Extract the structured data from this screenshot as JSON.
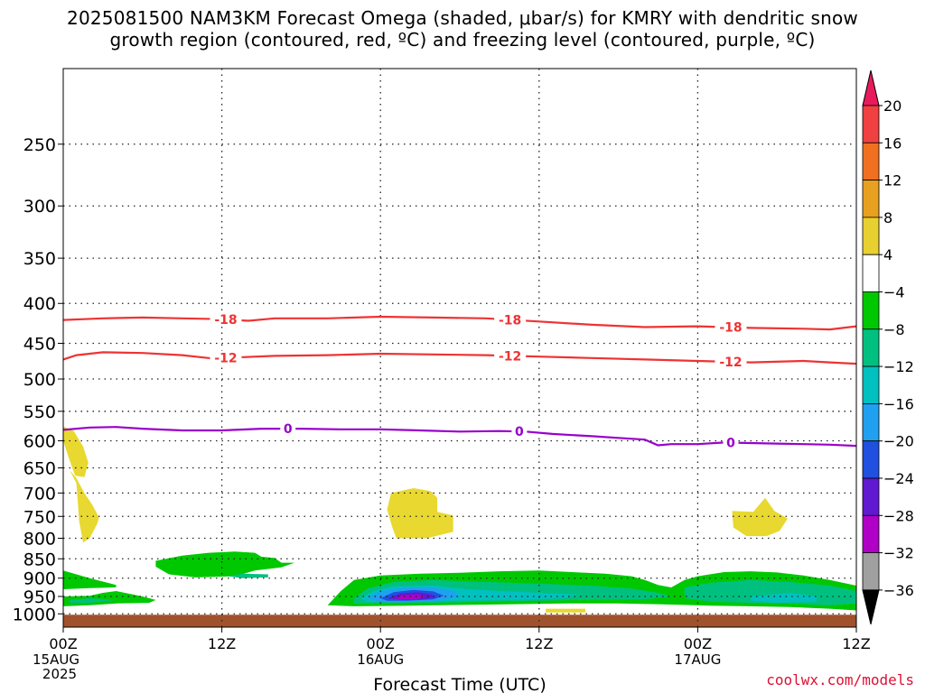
{
  "chart_data": {
    "type": "heatmap",
    "title_line1": "2025081500 NAM3KM Forecast Omega (shaded, μbar/s) for KMRY with dendritic snow",
    "title_line2": "growth region (contoured, red, ºC) and freezing level (contoured, purple, ºC)",
    "xlabel": "Forecast Time (UTC)",
    "ylabel": "",
    "y_scale": "log-pressure (hPa), inverted",
    "ylim": [
      1040,
      200
    ],
    "xlim_hours": [
      0,
      60
    ],
    "y_ticks": [
      250,
      300,
      350,
      400,
      450,
      500,
      550,
      600,
      650,
      700,
      750,
      800,
      850,
      900,
      950,
      1000
    ],
    "x_ticks": [
      {
        "hour": 0,
        "time": "00Z",
        "date": "15AUG",
        "year": "2025"
      },
      {
        "hour": 12,
        "time": "12Z",
        "date": "",
        "year": ""
      },
      {
        "hour": 24,
        "time": "00Z",
        "date": "16AUG",
        "year": ""
      },
      {
        "hour": 36,
        "time": "12Z",
        "date": "",
        "year": ""
      },
      {
        "hour": 48,
        "time": "00Z",
        "date": "17AUG",
        "year": ""
      },
      {
        "hour": 60,
        "time": "12Z",
        "date": "",
        "year": ""
      }
    ],
    "grid": true,
    "colorbar": {
      "levels": [
        "20",
        "16",
        "12",
        "8",
        "4",
        "−4",
        "−8",
        "−12",
        "−16",
        "−20",
        "−24",
        "−28",
        "−32",
        "−36"
      ],
      "colors": [
        "#e81a5c",
        "#f04040",
        "#f07020",
        "#e8a020",
        "#e8d030",
        "#ffffff",
        "#00c800",
        "#00c080",
        "#00c0c0",
        "#20a0f0",
        "#2050e0",
        "#6018d0",
        "#b000c8",
        "#a0a0a0",
        "#000000"
      ]
    },
    "contours": [
      {
        "label": "-18",
        "color": "#ee3333",
        "points": [
          [
            0,
            420
          ],
          [
            3,
            418
          ],
          [
            6,
            417
          ],
          [
            9,
            418
          ],
          [
            12,
            419
          ],
          [
            14,
            421
          ],
          [
            16,
            418
          ],
          [
            20,
            418
          ],
          [
            24,
            416
          ],
          [
            28,
            417
          ],
          [
            32,
            418
          ],
          [
            36,
            422
          ],
          [
            40,
            426
          ],
          [
            44,
            429
          ],
          [
            48,
            428
          ],
          [
            52,
            430
          ],
          [
            56,
            431
          ],
          [
            58,
            432
          ],
          [
            60,
            428
          ]
        ]
      },
      {
        "label": "-12",
        "color": "#ee3333",
        "points": [
          [
            0,
            472
          ],
          [
            1,
            466
          ],
          [
            3,
            462
          ],
          [
            6,
            463
          ],
          [
            9,
            466
          ],
          [
            11,
            470
          ],
          [
            12,
            470
          ],
          [
            16,
            467
          ],
          [
            20,
            466
          ],
          [
            24,
            464
          ],
          [
            28,
            465
          ],
          [
            32,
            466
          ],
          [
            36,
            468
          ],
          [
            40,
            470
          ],
          [
            44,
            472
          ],
          [
            48,
            474
          ],
          [
            52,
            476
          ],
          [
            56,
            474
          ],
          [
            58,
            476
          ],
          [
            60,
            478
          ]
        ]
      },
      {
        "label": "0",
        "color": "#9900cc",
        "points": [
          [
            0,
            581
          ],
          [
            2,
            577
          ],
          [
            4,
            576
          ],
          [
            6,
            579
          ],
          [
            9,
            582
          ],
          [
            12,
            582
          ],
          [
            15,
            579
          ],
          [
            18,
            579
          ],
          [
            21,
            580
          ],
          [
            24,
            580
          ],
          [
            27,
            582
          ],
          [
            30,
            584
          ],
          [
            33,
            583
          ],
          [
            35,
            584
          ],
          [
            37,
            588
          ],
          [
            40,
            592
          ],
          [
            42,
            595
          ],
          [
            44,
            598
          ],
          [
            45,
            608
          ],
          [
            46,
            606
          ],
          [
            48,
            606
          ],
          [
            50,
            603
          ],
          [
            52,
            604
          ],
          [
            54,
            605
          ],
          [
            56,
            606
          ],
          [
            58,
            607
          ],
          [
            60,
            609
          ]
        ]
      }
    ],
    "shaded_regions": [
      {
        "value": "4 to 8",
        "color": "#e8d830",
        "label": "positive omega near 600-650 hPa, 15AUG 00Z-02Z"
      },
      {
        "value": "4 to 8",
        "color": "#e8d830",
        "label": "positive omega 700-800 hPa near 16AUG 00Z-05Z"
      },
      {
        "value": "4 to 8",
        "color": "#e8d830",
        "label": "positive omega 720-800 hPa near 17AUG 02Z-05Z"
      },
      {
        "value": "-4 to -8",
        "color": "#00c800",
        "label": "upward motion 850-950 hPa"
      },
      {
        "value": "-8 to -32",
        "color": "#00c0c0",
        "label": "strongest ascent near 950 hPa, 16AUG 00Z-04Z"
      }
    ],
    "terrain_color": "#a0522d"
  },
  "credit": "coolwx.com/models"
}
